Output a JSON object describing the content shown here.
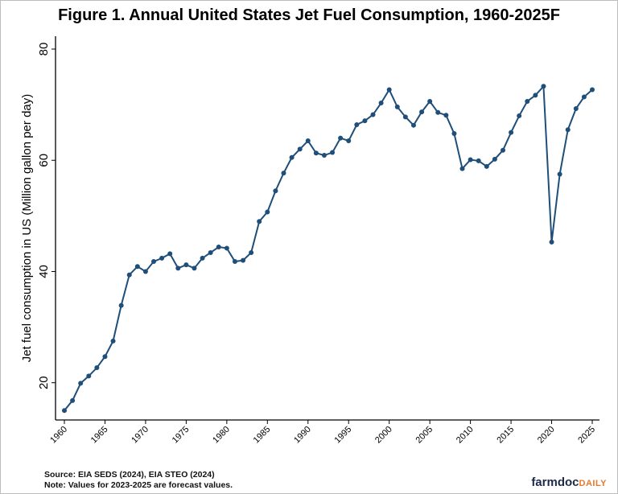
{
  "chart_data": {
    "type": "line",
    "title": "Figure 1. Annual United States Jet Fuel Consumption, 1960-2025F",
    "xlabel": "",
    "ylabel": "Jet fuel consumption in US (Million gallon per day)",
    "xlim": [
      1960,
      2025
    ],
    "ylim": [
      20,
      80
    ],
    "yticks": [
      20,
      40,
      60,
      80
    ],
    "xticks": [
      1960,
      1965,
      1970,
      1975,
      1980,
      1985,
      1990,
      1995,
      2000,
      2005,
      2010,
      2015,
      2020,
      2025
    ],
    "grid": false,
    "line_color": "#1f4e79",
    "x": [
      1960,
      1961,
      1962,
      1963,
      1964,
      1965,
      1966,
      1967,
      1968,
      1969,
      1970,
      1971,
      1972,
      1973,
      1974,
      1975,
      1976,
      1977,
      1978,
      1979,
      1980,
      1981,
      1982,
      1983,
      1984,
      1985,
      1986,
      1987,
      1988,
      1989,
      1990,
      1991,
      1992,
      1993,
      1994,
      1995,
      1996,
      1997,
      1998,
      1999,
      2000,
      2001,
      2002,
      2003,
      2004,
      2005,
      2006,
      2007,
      2008,
      2009,
      2010,
      2011,
      2012,
      2013,
      2014,
      2015,
      2016,
      2017,
      2018,
      2019,
      2020,
      2021,
      2022,
      2023,
      2024,
      2025
    ],
    "values": [
      15.0,
      16.8,
      19.9,
      21.2,
      22.7,
      24.7,
      27.5,
      33.9,
      39.4,
      40.9,
      40.0,
      41.8,
      42.4,
      43.2,
      40.6,
      41.2,
      40.6,
      42.4,
      43.4,
      44.4,
      44.2,
      41.8,
      42.0,
      43.4,
      49.0,
      50.7,
      54.5,
      57.7,
      60.5,
      62.0,
      63.5,
      61.3,
      60.9,
      61.4,
      64.0,
      63.5,
      66.4,
      67.1,
      68.2,
      70.3,
      72.7,
      69.6,
      67.8,
      66.3,
      68.7,
      70.6,
      68.6,
      68.1,
      64.8,
      58.5,
      60.1,
      59.9,
      58.9,
      60.2,
      61.8,
      65.0,
      68.0,
      70.6,
      71.7,
      73.3,
      45.3,
      57.5,
      65.5,
      69.3,
      71.4,
      72.7
    ]
  },
  "footer": {
    "source": "Source: EIA SEDS (2024), EIA STEO (2024)",
    "note": "Note: Values for 2023-2025 are forecast values."
  },
  "logo": {
    "main": "farmdoc",
    "accent": "DAILY"
  }
}
